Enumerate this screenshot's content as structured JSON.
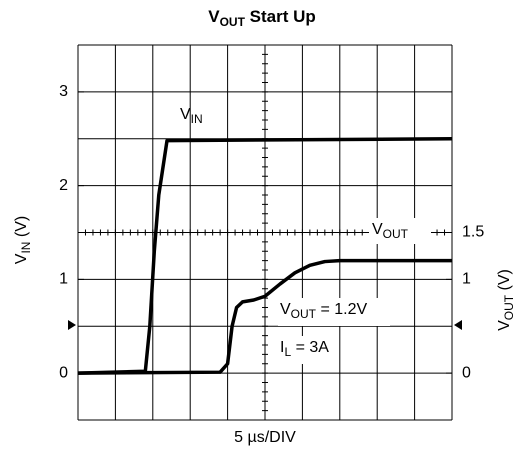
{
  "chart_data": {
    "type": "line",
    "title": [
      "V",
      "OUT",
      " Start Up"
    ],
    "x_label": "5 µs/DIV",
    "y_label": [
      "V",
      "IN",
      " (V)"
    ],
    "y2_label": [
      "V",
      "OUT",
      " (V)"
    ],
    "xlim": [
      0,
      50
    ],
    "ylim": [
      -0.5,
      3.5
    ],
    "yticks": [
      0,
      1,
      2,
      3
    ],
    "y2lim": [
      -0.5,
      3.5
    ],
    "y2ticks": [
      0,
      1,
      1.5
    ],
    "series": [
      {
        "name": [
          "V",
          "IN"
        ],
        "color": "#000000",
        "x": [
          0,
          9,
          9.6,
          10.2,
          10.8,
          11.9,
          50
        ],
        "values": [
          0,
          0.02,
          0.5,
          1.3,
          1.9,
          2.48,
          2.5
        ]
      },
      {
        "name": [
          "V",
          "OUT"
        ],
        "color": "#000000",
        "axis": "y2",
        "x": [
          0,
          19,
          20,
          20.6,
          21.2,
          22,
          23.5,
          25,
          27,
          29,
          31,
          33,
          35,
          50
        ],
        "values": [
          0,
          0.01,
          0.1,
          0.5,
          0.7,
          0.76,
          0.78,
          0.82,
          0.95,
          1.07,
          1.15,
          1.19,
          1.2,
          1.2
        ]
      }
    ],
    "annotations": [
      [
        "V",
        "OUT",
        " = 1.2V"
      ],
      [
        "I",
        "L",
        " = 3A"
      ]
    ]
  }
}
